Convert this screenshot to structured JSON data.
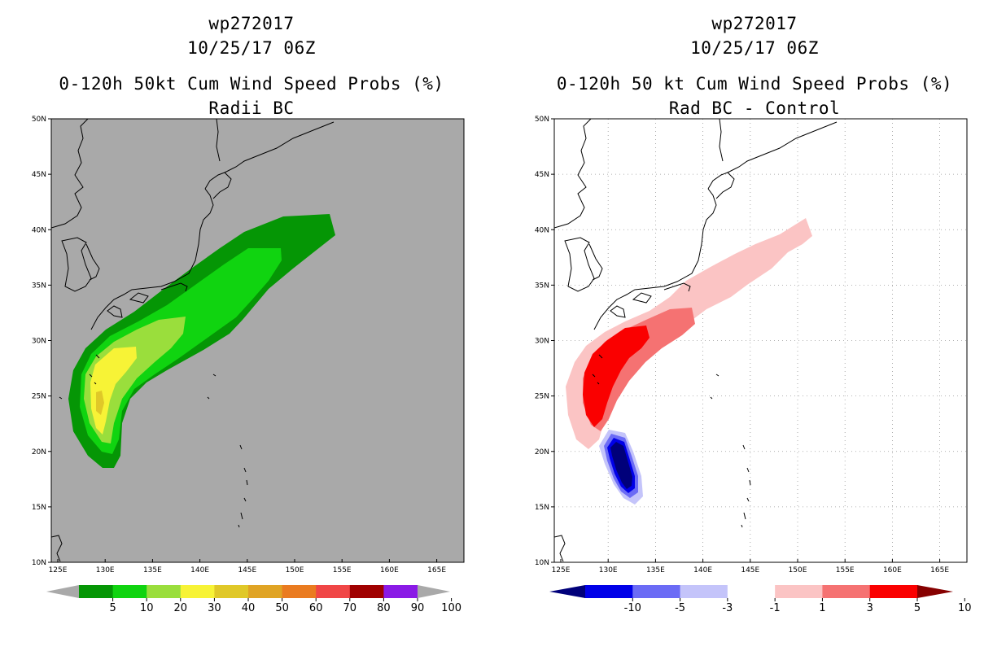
{
  "left": {
    "title_line1": "wp272017",
    "title_line2": "10/25/17 06Z",
    "title_line3": "0-120h 50kt Cum Wind Speed Probs (%)",
    "title_line4": "Radii BC",
    "background_color": "#a9a9a9",
    "colorbar": {
      "colors": [
        "#a9a9a9",
        "#059605",
        "#10d410",
        "#9ade3c",
        "#f7f336",
        "#e0c828",
        "#e0a424",
        "#ea7b20",
        "#f04646",
        "#a00000",
        "#8a1ae6",
        "#a9a9a9"
      ],
      "labels": [
        "5",
        "10",
        "20",
        "30",
        "40",
        "50",
        "60",
        "70",
        "80",
        "90",
        "100"
      ]
    }
  },
  "right": {
    "title_line1": "wp272017",
    "title_line2": "10/25/17 06Z",
    "title_line3": "0-120h 50 kt Cum Wind Speed Probs (%)",
    "title_line4": "Rad BC - Control",
    "background_color": "#ffffff",
    "colorbar": {
      "colors": [
        "#00007a",
        "#0000e8",
        "#6b6bf5",
        "#c4c4fa",
        "#ffffff",
        "#fbc4c4",
        "#f57272",
        "#fa0000",
        "#860000"
      ],
      "labels": [
        "-10",
        "-5",
        "-3",
        "-1",
        "1",
        "3",
        "5",
        "10"
      ]
    }
  },
  "axes": {
    "lat_labels": [
      "10N",
      "15N",
      "20N",
      "25N",
      "30N",
      "35N",
      "40N",
      "45N",
      "50N"
    ],
    "lon_labels": [
      "125E",
      "130E",
      "135E",
      "140E",
      "145E",
      "150E",
      "155E",
      "160E",
      "165E"
    ]
  }
}
